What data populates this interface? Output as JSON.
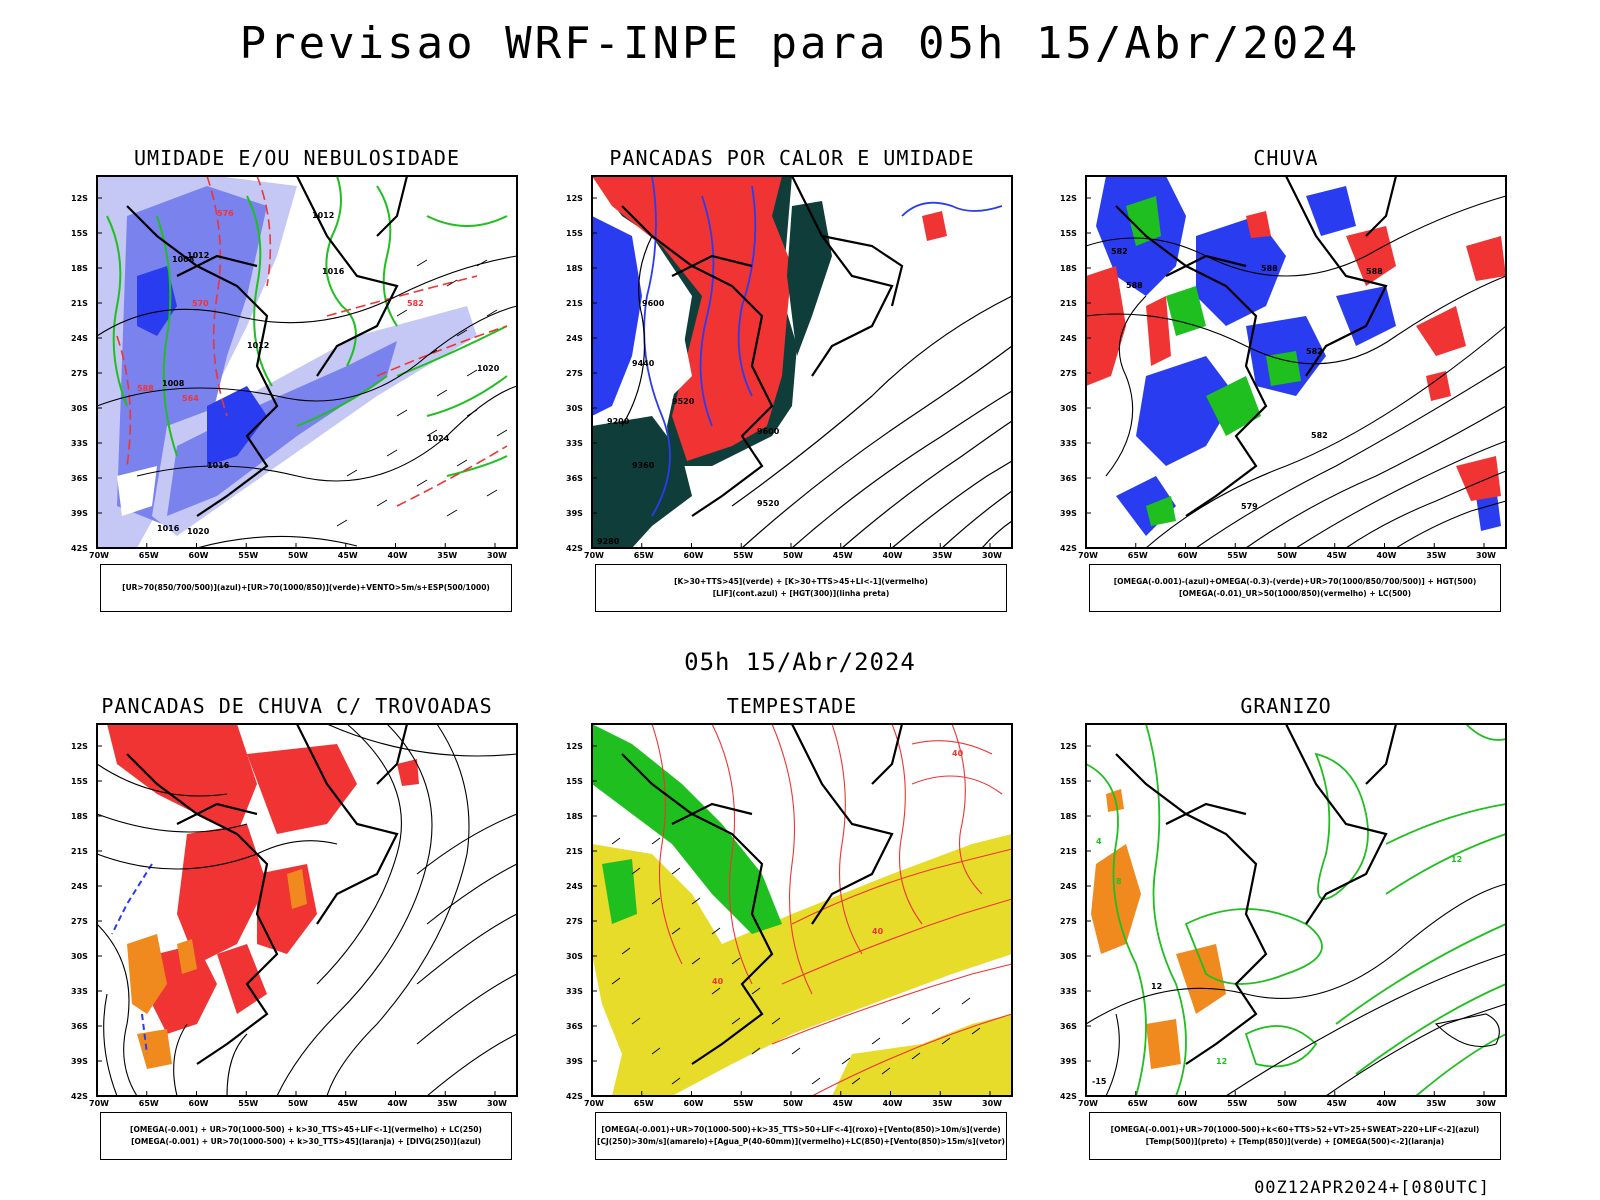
{
  "header": {
    "title": "Previsao WRF-INPE  para 05h 15/Abr/2024"
  },
  "mid_date": "05h 15/Abr/2024",
  "footer": "00Z12APR2024+[080UTC]",
  "axes": {
    "lat_ticks": [
      "12S",
      "15S",
      "18S",
      "21S",
      "24S",
      "27S",
      "30S",
      "33S",
      "36S",
      "39S",
      "42S"
    ],
    "lon_ticks": [
      "70W",
      "65W",
      "60W",
      "55W",
      "50W",
      "45W",
      "40W",
      "35W",
      "30W"
    ]
  },
  "panels": [
    {
      "title": "UMIDADE E/OU NEBULOSIDADE",
      "legend": [
        "[UR>70(850/700/500)](azul)+[UR>70(1000/850)](verde)+VENTO>5m/s+ESP(500/1000)"
      ],
      "labels": [
        "1008",
        "1012",
        "1016",
        "1020",
        "1024",
        "1012",
        "1016",
        "570",
        "576",
        "564",
        "582",
        "588",
        "1008",
        "1012",
        "1016",
        "1020"
      ]
    },
    {
      "title": "PANCADAS POR CALOR E UMIDADE",
      "legend": [
        "[K>30+TTS>45](verde) + [K>30+TTS>45+LI<-1](vermelho)",
        "[LIF](cont.azul) + [HGT(300)](linha preta)"
      ],
      "labels": [
        "9600",
        "9440",
        "9200",
        "9520",
        "9360",
        "9600",
        "9520",
        "9280"
      ]
    },
    {
      "title": "CHUVA",
      "legend": [
        "[OMEGA(-0.001)-(azul)+OMEGA(-0.3)-(verde)+UR>70(1000/850/700/500)] + HGT(500)",
        "[OMEGA(-0.01)_UR>50(1000/850)(vermelho) + LC(500)"
      ],
      "labels": [
        "582",
        "588",
        "588",
        "582",
        "579",
        "588",
        "582"
      ]
    },
    {
      "title": "PANCADAS DE CHUVA C/ TROVOADAS",
      "legend": [
        "[OMEGA(-0.001) + UR>70(1000-500) + k>30_TTS>45+LIF<-1](vermelho) + LC(250)",
        "[OMEGA(-0.001) + UR>70(1000-500) + k>30_TTS>45](laranja) + [DIVG(250)](azul)"
      ],
      "labels": []
    },
    {
      "title": "TEMPESTADE",
      "legend": [
        "[OMEGA(-0.001)+UR>70(1000-500)+k>35_TTS>50+LIF<-4](roxo)+[Vento(850)>10m/s](verde)",
        "[CJ(250)>30m/s](amarelo)+[Agua_P(40-60mm)](vermelho)+LC(850)+[Vento(850)>15m/s](vetor)"
      ],
      "labels": [
        "40",
        "40",
        "40"
      ]
    },
    {
      "title": "GRANIZO",
      "legend": [
        "[OMEGA(-0.001)+UR>70(1000-500)+k<60+TTS>52+VT>25+SWEAT>220+LIF<-2](azul)",
        "[Temp(500)](preto) + [Temp(850)](verde) + [OMEGA(500)<-2](laranja)"
      ],
      "labels": [
        "12",
        "12",
        "-15",
        "12",
        "4",
        "8"
      ]
    }
  ],
  "colors": {
    "blue": "#2a3cf0",
    "light_blue": "#c5c8f5",
    "mid_blue": "#7a82ee",
    "green": "#1fbf1f",
    "red": "#f03434",
    "dark_teal": "#0f3d3a",
    "orange": "#f08a1e",
    "yellow": "#e7dc2a",
    "contour": "#000000"
  }
}
